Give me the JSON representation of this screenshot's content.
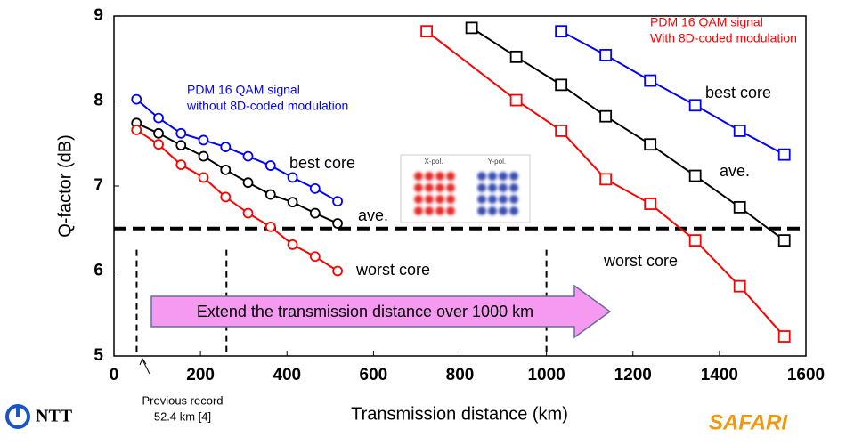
{
  "chart_data": {
    "type": "line",
    "xlabel": "Transmission distance (km)",
    "ylabel": "Q-factor (dB)",
    "xlim": [
      0,
      1600
    ],
    "ylim": [
      5,
      9
    ],
    "xticks": [
      0,
      200,
      400,
      600,
      800,
      1000,
      1200,
      1400,
      1600
    ],
    "yticks": [
      5,
      6,
      7,
      8,
      9
    ],
    "threshold": 6.5,
    "vlines": [
      52.4,
      260,
      1000
    ],
    "series": [
      {
        "name": "best core",
        "color": "#0000ff",
        "marker": "circle",
        "x": [
          52,
          103,
          155,
          207,
          258,
          310,
          362,
          413,
          465,
          517
        ],
        "values": [
          8.02,
          7.8,
          7.62,
          7.54,
          7.46,
          7.35,
          7.24,
          7.1,
          6.97,
          6.82
        ]
      },
      {
        "name": "ave.",
        "color": "#000000",
        "marker": "circle",
        "x": [
          52,
          103,
          155,
          207,
          258,
          310,
          362,
          413,
          465,
          517
        ],
        "values": [
          7.74,
          7.62,
          7.48,
          7.35,
          7.19,
          7.04,
          6.9,
          6.81,
          6.68,
          6.56
        ]
      },
      {
        "name": "worst core",
        "color": "#ff0000",
        "marker": "circle",
        "x": [
          52,
          103,
          155,
          207,
          258,
          310,
          362,
          413,
          465,
          517
        ],
        "values": [
          7.66,
          7.49,
          7.25,
          7.1,
          6.87,
          6.68,
          6.52,
          6.31,
          6.17,
          6.0
        ]
      },
      {
        "name": "best core",
        "color": "#0000ff",
        "marker": "square",
        "x": [
          1034,
          1137,
          1240,
          1344,
          1447,
          1550
        ],
        "values": [
          8.82,
          8.54,
          8.24,
          7.95,
          7.65,
          7.37
        ]
      },
      {
        "name": "ave.",
        "color": "#000000",
        "marker": "square",
        "x": [
          827,
          930,
          1034,
          1137,
          1240,
          1344,
          1447,
          1550
        ],
        "values": [
          8.86,
          8.52,
          8.19,
          7.82,
          7.49,
          7.12,
          6.75,
          6.36
        ]
      },
      {
        "name": "worst core",
        "color": "#ff0000",
        "marker": "square",
        "x": [
          723,
          930,
          1034,
          1137,
          1240,
          1344,
          1447,
          1550
        ],
        "values": [
          8.82,
          8.01,
          7.65,
          7.08,
          6.79,
          6.36,
          5.82,
          5.23
        ]
      }
    ],
    "annotations": {
      "without_8d": [
        "PDM 16 QAM signal",
        "without 8D-coded modulation"
      ],
      "with_8d": [
        "PDM 16 QAM signal",
        "With 8D-coded modulation"
      ],
      "arrow_text": "Extend the transmission distance over 1000 km",
      "previous_record": [
        "Previous record",
        "52.4 km [4]"
      ],
      "inset": [
        "X-pol.",
        "Y-pol."
      ]
    },
    "logos": [
      "NTT",
      "SAFARI"
    ]
  }
}
